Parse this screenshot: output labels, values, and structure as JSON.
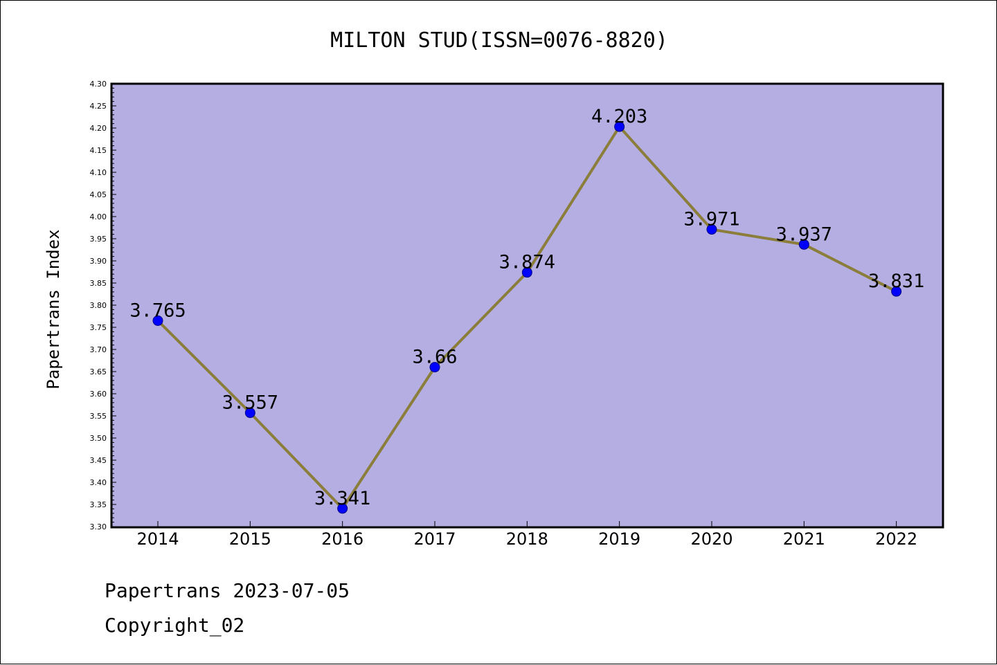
{
  "chart_data": {
    "type": "line",
    "title": "MILTON STUD(ISSN=0076-8820)",
    "xlabel": "",
    "ylabel": "Papertrans Index",
    "categories": [
      "2014",
      "2015",
      "2016",
      "2017",
      "2018",
      "2019",
      "2020",
      "2021",
      "2022"
    ],
    "series": [
      {
        "values": [
          3.765,
          3.557,
          3.341,
          3.66,
          3.874,
          4.203,
          3.971,
          3.937,
          3.831
        ],
        "data_labels": [
          "3.765",
          "3.557",
          "3.341",
          "3.66",
          "3.874",
          "4.203",
          "3.971",
          "3.937",
          "3.831"
        ]
      }
    ],
    "ylim": [
      3.3,
      4.3
    ],
    "yticks": [
      "3.30",
      "3.35",
      "3.40",
      "3.45",
      "3.50",
      "3.55",
      "3.60",
      "3.65",
      "3.70",
      "3.75",
      "3.80",
      "3.85",
      "3.90",
      "3.95",
      "4.00",
      "4.05",
      "4.10",
      "4.15",
      "4.20",
      "4.25",
      "4.30"
    ],
    "grid": false,
    "legend": "none",
    "colors": {
      "plot_background": "#b5aee2",
      "line": "#8b7d3a",
      "marker": "#0000ff",
      "axis": "#000000"
    }
  },
  "footer": {
    "date": "Papertrans 2023-07-05",
    "copyright": "Copyright_02"
  }
}
